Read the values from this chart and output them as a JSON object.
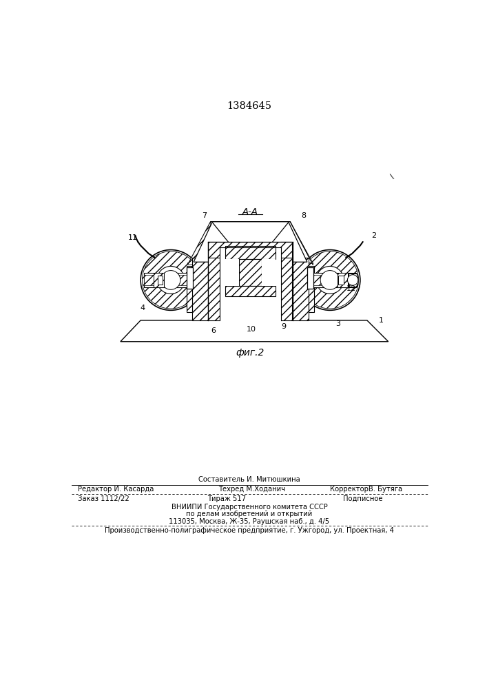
{
  "patent_number": "1384645",
  "background_color": "#ffffff",
  "text_color": "#000000",
  "fig_label": "фиг.2",
  "section_label": "А-А",
  "footer_line1_center_top": "Составитель И. Митюшкина",
  "footer_line1_left": "Редактор И. Касарда",
  "footer_line1_center": "Техред М.Ходанич",
  "footer_line1_right": "КорректорВ. Бутяга",
  "footer_line2_left": "Заказ 1112/22",
  "footer_line2_center": "Тираж 517",
  "footer_line2_right": "Подписное",
  "footer_line3": "ВНИИПИ Государственного комитета СССР",
  "footer_line4": "по делам изобретений и открытий",
  "footer_line5": "113035, Москва, Ж-35, Раушская наб., д. 4/5",
  "footer_line6": "Производственно-полиграфическое предприятие, г. Ужгород, ул. Проектная, 4"
}
